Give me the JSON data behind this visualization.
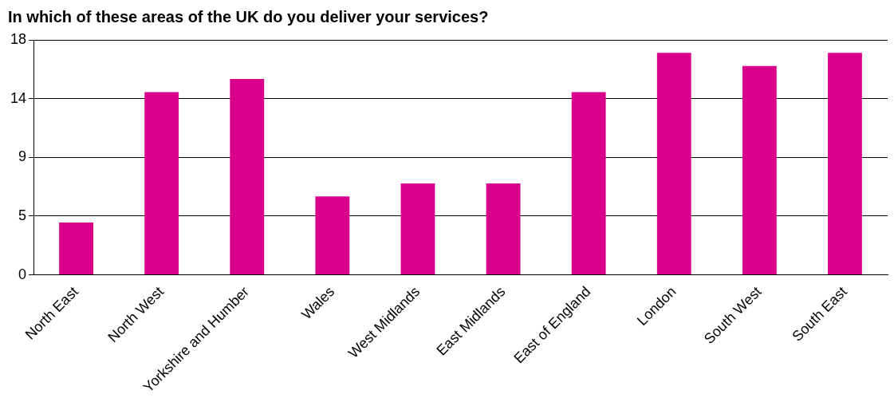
{
  "chart_data": {
    "type": "bar",
    "title": "In which of these areas of the UK do you deliver your services?",
    "categories": [
      "North East",
      "North West",
      "Yorkshire and Humber",
      "Wales",
      "West Midlands",
      "East Midlands",
      "East of England",
      "London",
      "South West",
      "South East"
    ],
    "values": [
      4,
      14,
      15,
      6,
      7,
      7,
      14,
      17,
      16,
      17
    ],
    "color": "#d9008c",
    "ylim": [
      0,
      18
    ],
    "yticks": [
      0,
      {
        "value": 4.5,
        "label": "5"
      },
      9,
      {
        "value": 13.5,
        "label": "14"
      },
      18
    ],
    "grid": "y",
    "legend": false
  }
}
